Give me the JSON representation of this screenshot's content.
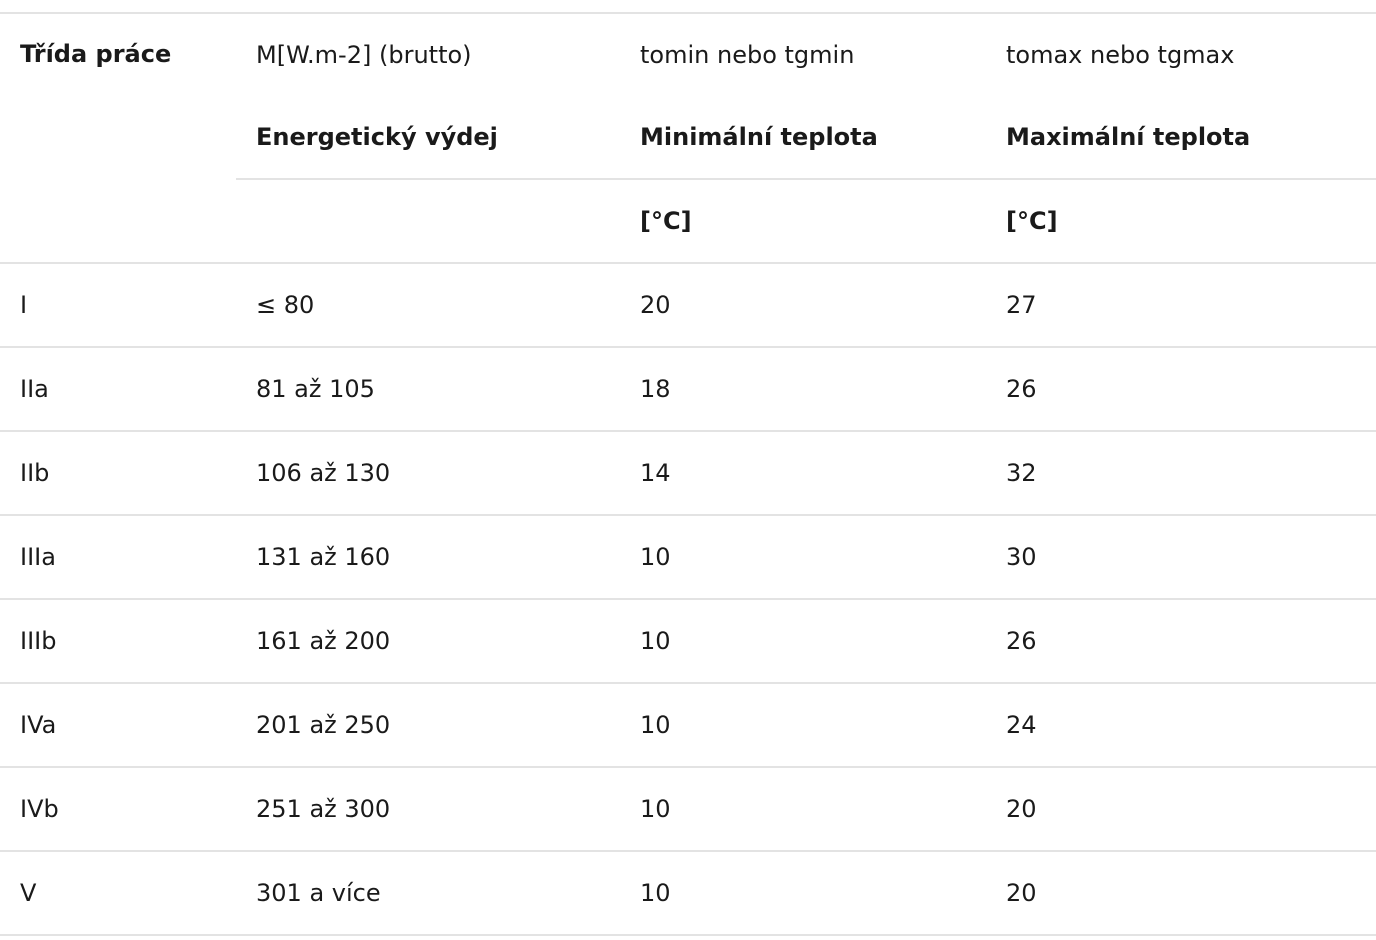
{
  "table": {
    "header": {
      "class_label": "Třída práce",
      "row1": [
        "M[W.m-2] (brutto)",
        "tomin nebo tgmin",
        "tomax nebo tgmax"
      ],
      "row2": [
        "Energetický výdej",
        "Minimální teplota",
        "Maximální teplota"
      ],
      "row3": [
        "",
        "[°C]",
        "[°C]"
      ]
    },
    "rows": [
      {
        "cls": "I",
        "m": "≤ 80",
        "tmin": "20",
        "tmax": "27"
      },
      {
        "cls": "IIa",
        "m": "81 až 105",
        "tmin": "18",
        "tmax": "26"
      },
      {
        "cls": "IIb",
        "m": "106 až 130",
        "tmin": "14",
        "tmax": "32"
      },
      {
        "cls": "IIIa",
        "m": "131 až 160",
        "tmin": "10",
        "tmax": "30"
      },
      {
        "cls": "IIIb",
        "m": "161 až 200",
        "tmin": "10",
        "tmax": "26"
      },
      {
        "cls": "IVa",
        "m": "201 až 250",
        "tmin": "10",
        "tmax": "24"
      },
      {
        "cls": "IVb",
        "m": "251 až 300",
        "tmin": "10",
        "tmax": "20"
      },
      {
        "cls": "V",
        "m": "301 a více",
        "tmin": "10",
        "tmax": "20"
      }
    ]
  }
}
